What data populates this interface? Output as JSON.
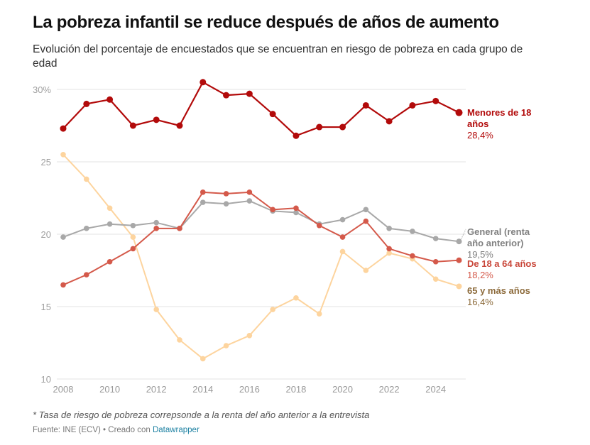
{
  "title": "La pobreza infantil se reduce después de años de aumento",
  "subtitle": "Evolución del porcentaje de encuestados que se encuentran en riesgo de pobreza en cada grupo de edad",
  "note": "* Tasa de riesgo de pobreza correpsonde a la renta del año anterior a la entrevista",
  "source": {
    "prefix": "Fuente: INE (ECV) • Creado con ",
    "link_label": "Datawrapper"
  },
  "chart_data": {
    "type": "line",
    "title": "La pobreza infantil se reduce después de años de aumento",
    "xlabel": "",
    "ylabel": "",
    "x": [
      2008,
      2009,
      2010,
      2011,
      2012,
      2013,
      2014,
      2015,
      2016,
      2017,
      2018,
      2019,
      2020,
      2021,
      2022,
      2023,
      2024,
      2025
    ],
    "xticks": [
      "2008",
      "2010",
      "2012",
      "2014",
      "2016",
      "2018",
      "2020",
      "2022",
      "2024"
    ],
    "xtick_values": [
      2008,
      2010,
      2012,
      2014,
      2016,
      2018,
      2020,
      2022,
      2024
    ],
    "yticks": [
      "30%",
      "25",
      "20",
      "15",
      "10"
    ],
    "ytick_values": [
      30,
      25,
      20,
      15,
      10
    ],
    "ylim": [
      10,
      30
    ],
    "xlim": [
      2008,
      2025
    ],
    "grid": "horizontal",
    "legend": "direct-labels-right",
    "series": [
      {
        "name": "Menores de 18 años",
        "label_lines": [
          "Menores de 18",
          "años"
        ],
        "end_label": "28,4%",
        "color": "#b20a0a",
        "name_color": "#b20a0a",
        "values": [
          27.3,
          29.0,
          29.3,
          27.5,
          27.9,
          27.5,
          30.5,
          29.6,
          29.7,
          28.3,
          26.8,
          27.4,
          27.4,
          28.9,
          27.8,
          28.9,
          29.2,
          28.4
        ]
      },
      {
        "name": "General (renta año anterior)",
        "label_lines": [
          "General (renta",
          "año anterior)"
        ],
        "end_label": "19,5%",
        "color": "#a8a8a8",
        "name_color": "#808080",
        "values": [
          19.8,
          20.4,
          20.7,
          20.6,
          20.8,
          20.4,
          22.2,
          22.1,
          22.3,
          21.6,
          21.5,
          20.7,
          21.0,
          21.7,
          20.4,
          20.2,
          19.7,
          19.5
        ]
      },
      {
        "name": "De 18 a 64 años",
        "label_lines": [
          "De 18 a 64 años"
        ],
        "end_label": "18,2%",
        "color": "#d4594a",
        "name_color": "#c9473a",
        "values": [
          16.5,
          17.2,
          18.1,
          19.0,
          20.4,
          20.4,
          22.9,
          22.8,
          22.9,
          21.7,
          21.8,
          20.6,
          19.8,
          20.9,
          19.0,
          18.5,
          18.1,
          18.2
        ]
      },
      {
        "name": "65 y más años",
        "label_lines": [
          "65 y más años"
        ],
        "end_label": "16,4%",
        "color": "#fdd49e",
        "name_color": "#8c6a3a",
        "values": [
          25.5,
          23.8,
          21.8,
          19.8,
          14.8,
          12.7,
          11.4,
          12.3,
          13.0,
          14.8,
          15.6,
          14.5,
          18.8,
          17.5,
          18.7,
          18.3,
          16.9,
          16.4
        ]
      }
    ]
  }
}
